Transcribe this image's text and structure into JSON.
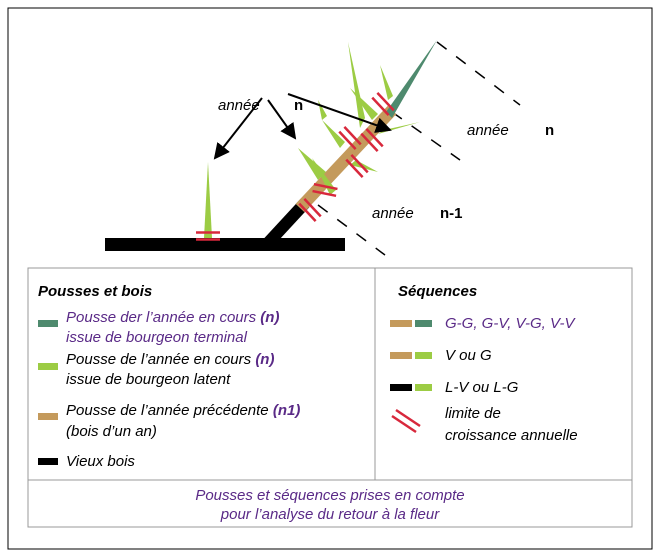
{
  "diagram": {
    "labels": [
      {
        "word": "année",
        "index": "n"
      },
      {
        "word": "année",
        "index": "n"
      },
      {
        "word": "année",
        "index": "n-1"
      }
    ],
    "legend_left": {
      "title": "Pousses et bois",
      "items": [
        {
          "text": "Pousse der l’année en cours",
          "bold": "(n)",
          "line2": "issue de bourgeon terminal"
        },
        {
          "text": "Pousse de l’année en cours",
          "bold": "(n)",
          "line2": "issue de bourgeon latent"
        },
        {
          "text": "Pousse de l’année précédente",
          "bold": "(n1)",
          "line2": "(bois d’un an)"
        },
        {
          "text": "Vieux bois"
        }
      ]
    },
    "legend_right": {
      "title": "Séquences",
      "items": [
        {
          "text": "G-G, G-V, V-G, V-V"
        },
        {
          "text": "V ou G"
        },
        {
          "text": "L-V ou L-G"
        },
        {
          "text": "limite de",
          "line2": "croissance annuelle"
        }
      ]
    },
    "caption": [
      "Pousses et séquences prises en compte",
      "pour l’analyse du retour à la fleur"
    ]
  }
}
